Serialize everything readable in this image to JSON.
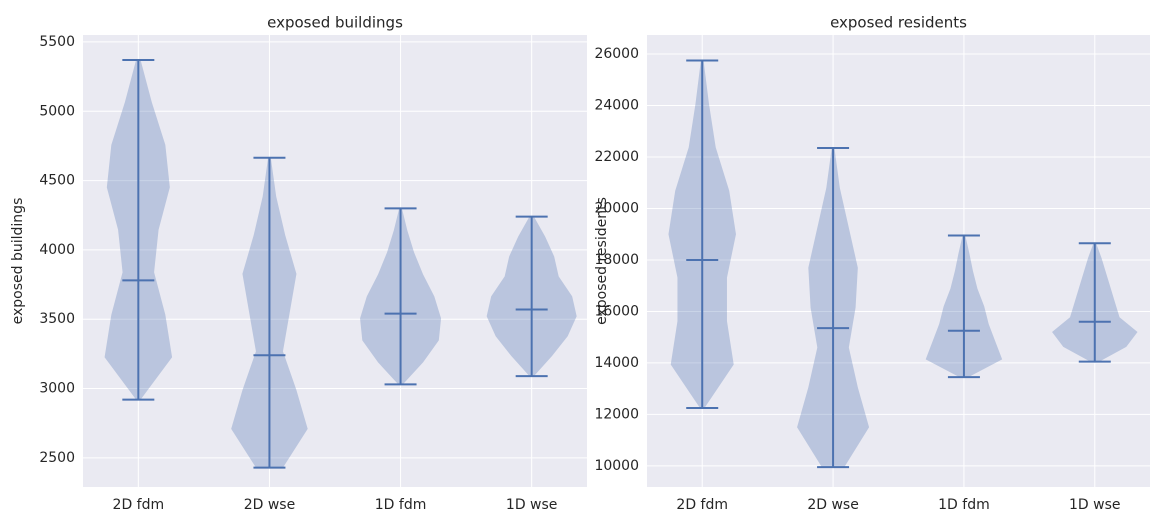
{
  "chart_data": [
    {
      "type": "violin",
      "title": "exposed buildings",
      "ylabel": "exposed buildings",
      "categories": [
        "2D fdm",
        "2D wse",
        "1D fdm",
        "1D wse"
      ],
      "min": [
        2920,
        2430,
        3030,
        3090
      ],
      "median": [
        3780,
        3240,
        3540,
        3570
      ],
      "max": [
        5370,
        4665,
        4300,
        4240
      ],
      "density": [
        [
          0.05,
          0.75,
          0.6,
          0.35,
          0.45,
          0.7,
          0.6,
          0.3,
          0.05
        ],
        [
          0.3,
          0.85,
          0.6,
          0.3,
          0.45,
          0.6,
          0.35,
          0.15,
          0.03
        ],
        [
          0.05,
          0.5,
          0.85,
          0.9,
          0.75,
          0.5,
          0.3,
          0.15,
          0.03
        ],
        [
          0.05,
          0.45,
          0.8,
          1.0,
          0.9,
          0.6,
          0.5,
          0.3,
          0.05
        ]
      ],
      "color": "#4c72b0",
      "ylim": [
        2290,
        5550
      ],
      "yticks": [
        2500,
        3000,
        3500,
        4000,
        4500,
        5000,
        5500
      ],
      "grid": true
    },
    {
      "type": "violin",
      "title": "exposed residents",
      "ylabel": "exposed residents",
      "categories": [
        "2D fdm",
        "2D wse",
        "1D fdm",
        "1D wse"
      ],
      "min": [
        12250,
        9950,
        13450,
        14050
      ],
      "median": [
        18000,
        15350,
        15250,
        15600
      ],
      "max": [
        25750,
        22350,
        18950,
        18650
      ],
      "density": [
        [
          0.05,
          0.7,
          0.55,
          0.55,
          0.75,
          0.6,
          0.3,
          0.15,
          0.03
        ],
        [
          0.25,
          0.8,
          0.55,
          0.35,
          0.5,
          0.55,
          0.35,
          0.15,
          0.03
        ],
        [
          0.1,
          0.85,
          0.7,
          0.55,
          0.45,
          0.3,
          0.2,
          0.12,
          0.03
        ],
        [
          0.1,
          0.7,
          0.95,
          0.55,
          0.45,
          0.35,
          0.25,
          0.15,
          0.03
        ]
      ],
      "color": "#4c72b0",
      "ylim": [
        9180,
        26740
      ],
      "yticks": [
        10000,
        12000,
        14000,
        16000,
        18000,
        20000,
        22000,
        24000,
        26000
      ],
      "grid": true
    }
  ]
}
